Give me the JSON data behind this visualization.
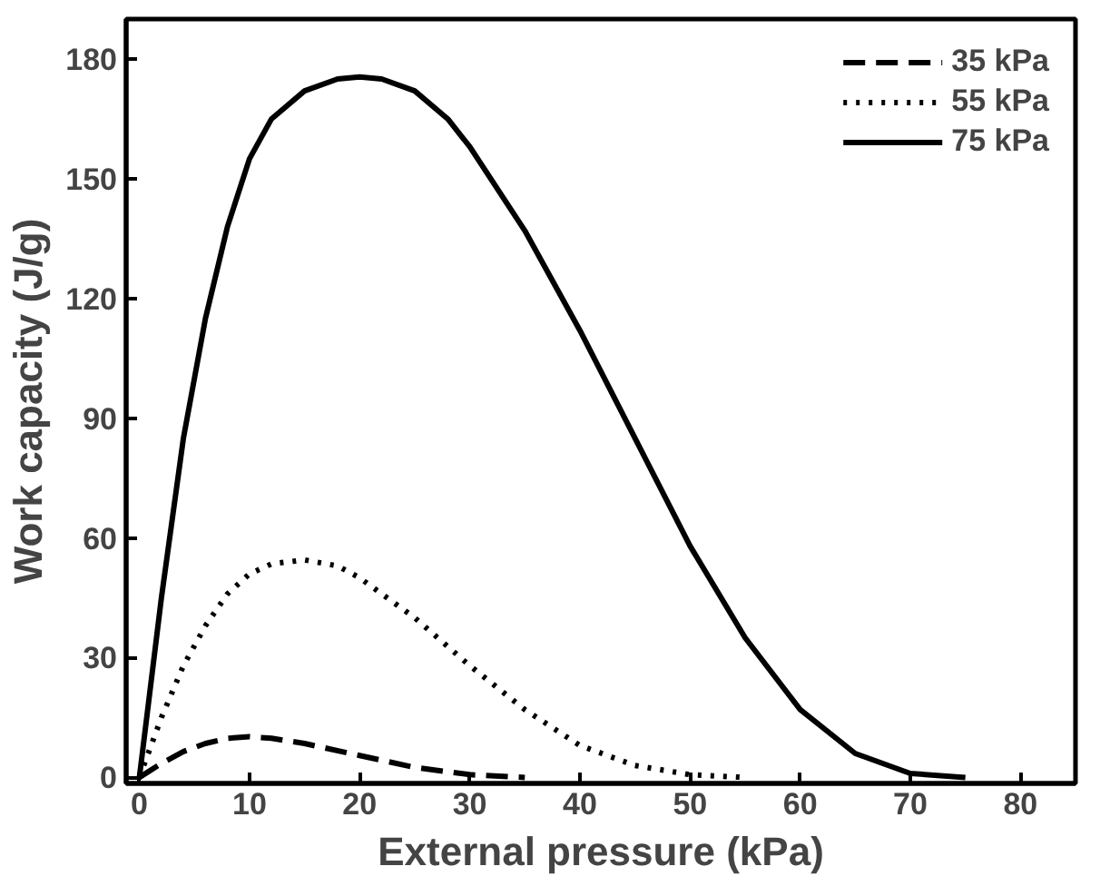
{
  "chart_data": {
    "type": "line",
    "xlabel": "External pressure (kPa)",
    "ylabel": "Work capacity (J/g)",
    "xlim": [
      -1.2,
      85
    ],
    "ylim": [
      -1.5,
      190
    ],
    "xticks": [
      0,
      10,
      20,
      30,
      40,
      50,
      60,
      70,
      80
    ],
    "yticks": [
      0,
      30,
      60,
      90,
      120,
      150,
      180
    ],
    "grid": false,
    "legend": "top right",
    "marker": "none",
    "series": [
      {
        "name": "35 kPa",
        "color": "#000000",
        "line_style": "dashed",
        "x": [
          0,
          2,
          4,
          6,
          8,
          10,
          12,
          15,
          20,
          25,
          30,
          35
        ],
        "values": [
          0,
          3.5,
          6.5,
          8.5,
          9.8,
          10.2,
          9.8,
          8.5,
          5.5,
          2.5,
          0.7,
          0
        ]
      },
      {
        "name": "55 kPa",
        "color": "#000000",
        "line_style": "dotted",
        "x": [
          0,
          2,
          4,
          6,
          8,
          10,
          12,
          15,
          18,
          20,
          25,
          30,
          35,
          40,
          45,
          50,
          55
        ],
        "values": [
          0,
          15,
          28,
          38,
          46,
          51,
          53.5,
          54.5,
          53,
          50,
          40,
          28,
          17,
          8,
          3,
          0.7,
          0
        ]
      },
      {
        "name": "75 kPa",
        "color": "#000000",
        "line_style": "solid",
        "x": [
          0,
          2,
          4,
          6,
          8,
          10,
          12,
          15,
          18,
          20,
          22,
          25,
          28,
          30,
          35,
          40,
          45,
          50,
          55,
          60,
          65,
          70,
          75
        ],
        "values": [
          0,
          45,
          85,
          115,
          138,
          155,
          165,
          172,
          175,
          175.5,
          175,
          172,
          165,
          158,
          137,
          112,
          85,
          58,
          35,
          17,
          6,
          1,
          0
        ]
      }
    ]
  }
}
